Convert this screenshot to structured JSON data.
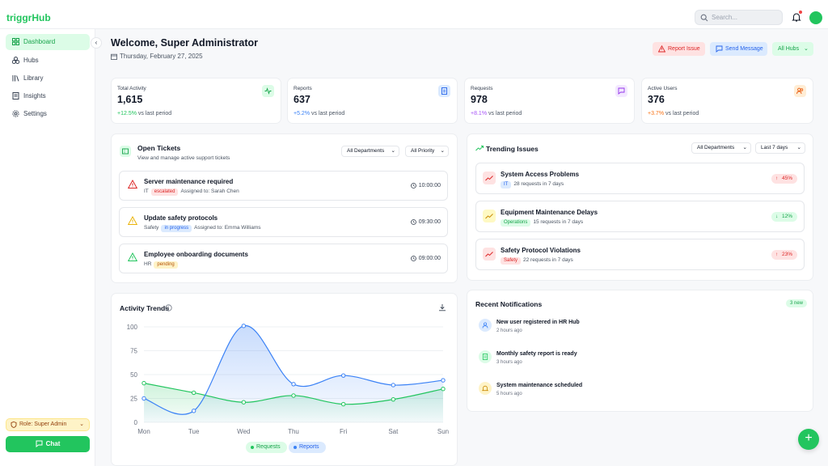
{
  "app": {
    "logo": "triggrHub",
    "search_placeholder": "Search..."
  },
  "sidebar": {
    "items": [
      {
        "label": "Dashboard",
        "icon": "dashboard-icon",
        "active": true
      },
      {
        "label": "Hubs",
        "icon": "hubs-icon"
      },
      {
        "label": "Library",
        "icon": "library-icon"
      },
      {
        "label": "Insights",
        "icon": "insights-icon"
      },
      {
        "label": "Settings",
        "icon": "gear-icon"
      }
    ],
    "role": "Role: Super Admin",
    "chat": "Chat",
    "collapse": "‹"
  },
  "header": {
    "welcome": "Welcome, Super Administrator",
    "date": "Thursday, February 27, 2025",
    "report_issue": "Report Issue",
    "send_message": "Send Message",
    "all_hubs": "All Hubs"
  },
  "stats": [
    {
      "label": "Total Activity",
      "value": "1,615",
      "change": "+12.5%",
      "suffix": "vs last period",
      "color": "#22c55e"
    },
    {
      "label": "Reports",
      "value": "637",
      "change": "+5.2%",
      "suffix": "vs last period",
      "color": "#3b82f6"
    },
    {
      "label": "Requests",
      "value": "978",
      "change": "+8.1%",
      "suffix": "vs last period",
      "color": "#a855f7"
    },
    {
      "label": "Active Users",
      "value": "376",
      "change": "+3.7%",
      "suffix": "vs last period",
      "color": "#f97316"
    }
  ],
  "tickets": {
    "title": "Open Tickets",
    "subtitle": "View and manage active support tickets",
    "dept_filter": "All Departments",
    "priority_filter": "All Priority",
    "items": [
      {
        "title": "Server maintenance required",
        "dept": "IT",
        "status": "escalated",
        "assigned": "Assigned to: Sarah Chen",
        "time": "10:00:00"
      },
      {
        "title": "Update safety protocols",
        "dept": "Safety",
        "status": "in progress",
        "assigned": "Assigned to: Emma Williams",
        "time": "09:30:00"
      },
      {
        "title": "Employee onboarding documents",
        "dept": "HR",
        "status": "pending",
        "assigned": "",
        "time": "09:00:00"
      }
    ]
  },
  "trending": {
    "title": "Trending Issues",
    "dept_filter": "All Departments",
    "range_filter": "Last 7 days",
    "items": [
      {
        "title": "System Access Problems",
        "tag": "IT",
        "meta": "28 requests in 7 days",
        "change": "45%",
        "direction": "up"
      },
      {
        "title": "Equipment Maintenance Delays",
        "tag": "Operations",
        "meta": "15 requests in 7 days",
        "change": "12%",
        "direction": "down"
      },
      {
        "title": "Safety Protocol Violations",
        "tag": "Safety",
        "meta": "22 requests in 7 days",
        "change": "23%",
        "direction": "up"
      }
    ]
  },
  "notifications": {
    "title": "Recent Notifications",
    "badge": "3 new",
    "items": [
      {
        "title": "New user registered in HR Hub",
        "time": "2 hours ago",
        "icon": "user-icon"
      },
      {
        "title": "Monthly safety report is ready",
        "time": "3 hours ago",
        "icon": "document-icon"
      },
      {
        "title": "System maintenance scheduled",
        "time": "5 hours ago",
        "icon": "bell-icon"
      }
    ]
  },
  "chart_data": {
    "type": "line",
    "title": "Activity Trends",
    "categories": [
      "Mon",
      "Tue",
      "Wed",
      "Thu",
      "Fri",
      "Sat",
      "Sun"
    ],
    "yticks": [
      0,
      25,
      50,
      75,
      100
    ],
    "ylim": [
      0,
      100
    ],
    "series": [
      {
        "name": "Requests",
        "color": "#22c55e",
        "values": [
          41,
          31,
          21,
          28,
          19,
          24,
          35
        ]
      },
      {
        "name": "Reports",
        "color": "#3b82f6",
        "values": [
          25,
          12,
          101,
          40,
          49,
          39,
          44
        ]
      }
    ]
  }
}
